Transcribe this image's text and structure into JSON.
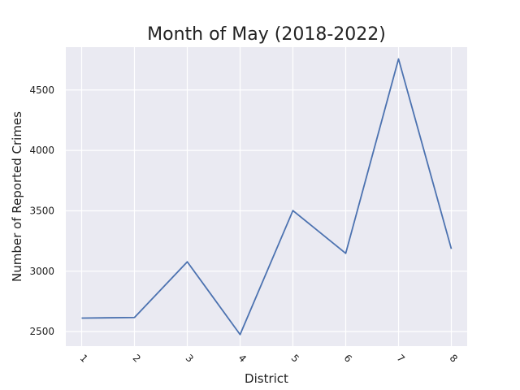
{
  "chart_data": {
    "type": "line",
    "title": "Month of May (2018-2022)",
    "xlabel": "District",
    "ylabel": "Number of Reported Crimes",
    "x": [
      1,
      2,
      3,
      4,
      5,
      6,
      7,
      8
    ],
    "x_tick_labels": [
      "1",
      "2",
      "3",
      "4",
      "5",
      "6",
      "7",
      "8"
    ],
    "x_tick_rotation_deg": 45,
    "series": [
      {
        "values": [
          2612,
          2617,
          3078,
          2476,
          3502,
          3148,
          4757,
          3185
        ],
        "color": "#4c72b0"
      }
    ],
    "xlim": [
      0.7,
      8.3
    ],
    "ylim": [
      2380,
      4855
    ],
    "y_ticks": [
      2500,
      3000,
      3500,
      4000,
      4500
    ],
    "grid": true,
    "legend": "none",
    "background_color": "#eaeaf2",
    "grid_color": "#ffffff"
  }
}
